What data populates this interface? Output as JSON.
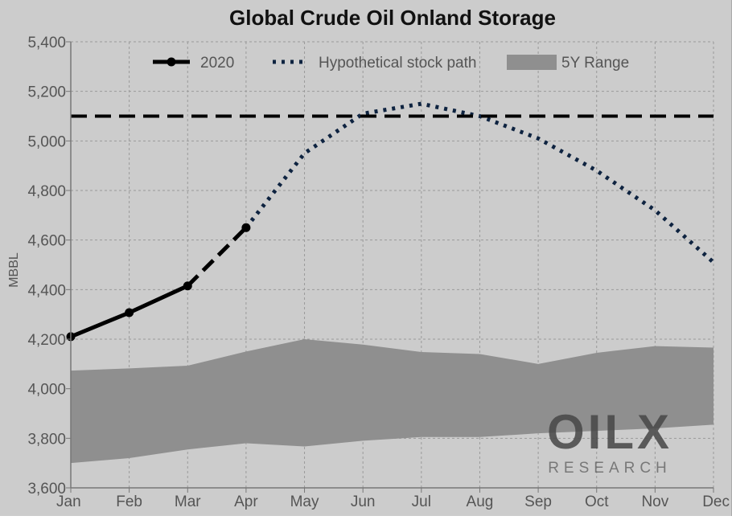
{
  "chart_data": {
    "type": "line",
    "title": "Global Crude Oil Onland Storage",
    "ylabel": "MBBL",
    "xlabel": "",
    "categories": [
      "Jan",
      "Feb",
      "Mar",
      "Apr",
      "May",
      "Jun",
      "Jul",
      "Aug",
      "Sep",
      "Oct",
      "Nov",
      "Dec"
    ],
    "ylim": [
      3600,
      5400
    ],
    "yticks": [
      3600,
      3800,
      4000,
      4200,
      4400,
      4600,
      4800,
      5000,
      5200,
      5400
    ],
    "ytick_labels": [
      "3,600",
      "3,800",
      "4,000",
      "4,200",
      "4,400",
      "4,600",
      "4,800",
      "5,000",
      "5,200",
      "5,400"
    ],
    "grid": true,
    "legend_position": "top",
    "reference_line": {
      "y": 5100,
      "style": "dashed",
      "color": "#000000"
    },
    "series": [
      {
        "name": "2020",
        "style": "solid-markers",
        "color": "#000000",
        "x": [
          "Jan",
          "Feb",
          "Mar"
        ],
        "values": [
          4210,
          4307,
          4415
        ]
      },
      {
        "style": "dashed",
        "color": "#000000",
        "x": [
          "Mar",
          "Apr"
        ],
        "values": [
          4415,
          4650
        ]
      },
      {
        "name": "Hypothetical stock path",
        "style": "dotted",
        "color": "#0e2340",
        "x": [
          "Apr",
          "May",
          "Jun",
          "Jul",
          "Aug",
          "Sep",
          "Oct",
          "Nov",
          "Dec"
        ],
        "values": [
          4650,
          4950,
          5110,
          5150,
          5100,
          5010,
          4880,
          4720,
          4510
        ]
      },
      {
        "name": "5Y Range",
        "type": "area-band",
        "color": "#8f8f8f",
        "lower": [
          3700,
          3720,
          3755,
          3780,
          3767,
          3790,
          3805,
          3805,
          3820,
          3830,
          3840,
          3855
        ],
        "upper": [
          4073,
          4082,
          4093,
          4150,
          4200,
          4178,
          4148,
          4140,
          4100,
          4145,
          4172,
          4166
        ]
      }
    ]
  },
  "watermark": {
    "logo_text": "OILX",
    "sub_text": "RESEARCH"
  },
  "colors": {
    "background": "#cccccc",
    "band": "#8f8f8f",
    "hypothetical": "#0e2340",
    "axis_text": "#555555",
    "grid": "#9a9a9a"
  }
}
